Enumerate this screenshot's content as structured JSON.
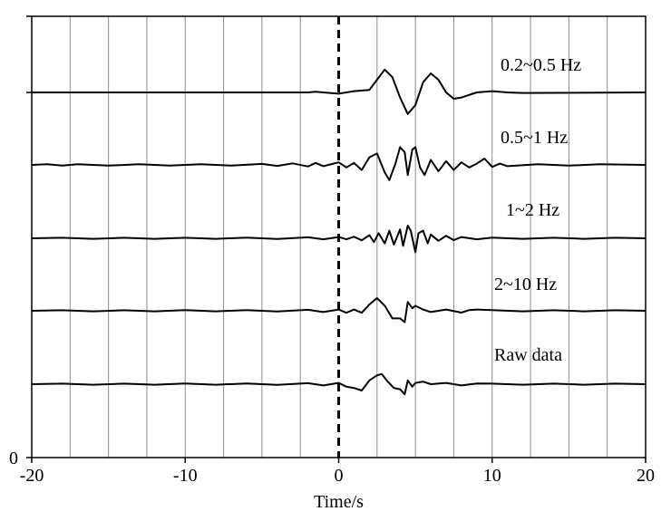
{
  "chart_data": {
    "type": "line",
    "title": "",
    "xlabel": "Time/s",
    "ylabel": "",
    "xlim": [
      -20,
      20
    ],
    "x_ticks": [
      -20,
      -10,
      0,
      10,
      20
    ],
    "x_tick_labels": [
      "-20",
      "-10",
      "0",
      "10",
      "20"
    ],
    "y_tick_labels": [
      "0"
    ],
    "vertical_grid_interval_s": 2.5,
    "grid": "vertical lines only",
    "onset_marker": {
      "x": 0,
      "style": "dashed"
    },
    "series": [
      {
        "name": "0.2~0.5 Hz",
        "offset": 5,
        "color": "#000000",
        "points": [
          [
            -20,
            0
          ],
          [
            -2,
            0
          ],
          [
            -1.5,
            0.03
          ],
          [
            -1,
            0
          ],
          [
            0,
            -0.05
          ],
          [
            1,
            0.05
          ],
          [
            2,
            0.1
          ],
          [
            2.5,
            0.5
          ],
          [
            3,
            0.9
          ],
          [
            3.5,
            0.6
          ],
          [
            4,
            -0.2
          ],
          [
            4.5,
            -0.85
          ],
          [
            5,
            -0.5
          ],
          [
            5.5,
            0.4
          ],
          [
            6,
            0.75
          ],
          [
            6.5,
            0.5
          ],
          [
            7,
            0
          ],
          [
            7.5,
            -0.25
          ],
          [
            8,
            -0.2
          ],
          [
            9,
            0
          ],
          [
            10,
            0.05
          ],
          [
            11,
            0
          ],
          [
            12,
            -0.02
          ],
          [
            20,
            0
          ]
        ]
      },
      {
        "name": "0.5~1 Hz",
        "offset": 4,
        "color": "#000000",
        "points": [
          [
            -20,
            0
          ],
          [
            -19,
            0.03
          ],
          [
            -18,
            -0.03
          ],
          [
            -17,
            0.03
          ],
          [
            -15,
            -0.03
          ],
          [
            -13,
            0.03
          ],
          [
            -11,
            -0.03
          ],
          [
            -9,
            0.03
          ],
          [
            -7,
            -0.03
          ],
          [
            -5,
            0.04
          ],
          [
            -4,
            -0.04
          ],
          [
            -3,
            0.06
          ],
          [
            -2,
            -0.06
          ],
          [
            -1.5,
            0.08
          ],
          [
            -1,
            -0.05
          ],
          [
            0,
            0.1
          ],
          [
            0.5,
            -0.1
          ],
          [
            1,
            0.08
          ],
          [
            1.5,
            -0.2
          ],
          [
            2,
            0.3
          ],
          [
            2.5,
            0.45
          ],
          [
            3,
            -0.3
          ],
          [
            3.3,
            -0.6
          ],
          [
            3.7,
            0.05
          ],
          [
            4,
            0.7
          ],
          [
            4.3,
            0.5
          ],
          [
            4.5,
            -0.4
          ],
          [
            4.8,
            0.6
          ],
          [
            5,
            0.7
          ],
          [
            5.3,
            -0.1
          ],
          [
            5.6,
            -0.4
          ],
          [
            6,
            0.2
          ],
          [
            6.5,
            -0.25
          ],
          [
            7,
            0.15
          ],
          [
            7.5,
            -0.2
          ],
          [
            8,
            0.1
          ],
          [
            8.5,
            -0.1
          ],
          [
            9,
            0.05
          ],
          [
            9.5,
            0.25
          ],
          [
            10,
            -0.08
          ],
          [
            10.5,
            0.05
          ],
          [
            11,
            -0.05
          ],
          [
            13,
            0.03
          ],
          [
            15,
            -0.03
          ],
          [
            17,
            0.03
          ],
          [
            20,
            0
          ]
        ]
      },
      {
        "name": "1~2 Hz",
        "offset": 3,
        "color": "#000000",
        "points": [
          [
            -20,
            0
          ],
          [
            -18,
            0.02
          ],
          [
            -16,
            -0.02
          ],
          [
            -14,
            0.02
          ],
          [
            -12,
            -0.02
          ],
          [
            -10,
            0.02
          ],
          [
            -8,
            -0.02
          ],
          [
            -6,
            0.03
          ],
          [
            -4,
            -0.03
          ],
          [
            -2,
            0.04
          ],
          [
            -1,
            -0.04
          ],
          [
            0,
            0.05
          ],
          [
            0.5,
            -0.04
          ],
          [
            1,
            0.06
          ],
          [
            1.5,
            -0.08
          ],
          [
            2,
            0.12
          ],
          [
            2.3,
            -0.15
          ],
          [
            2.6,
            0.2
          ],
          [
            3,
            -0.2
          ],
          [
            3.3,
            0.3
          ],
          [
            3.6,
            -0.25
          ],
          [
            4,
            0.35
          ],
          [
            4.2,
            -0.3
          ],
          [
            4.5,
            0.5
          ],
          [
            4.7,
            0.3
          ],
          [
            5,
            -0.55
          ],
          [
            5.2,
            0.2
          ],
          [
            5.5,
            0.3
          ],
          [
            5.8,
            -0.2
          ],
          [
            6,
            0.15
          ],
          [
            6.5,
            -0.1
          ],
          [
            7,
            0.1
          ],
          [
            7.5,
            -0.07
          ],
          [
            8,
            0.05
          ],
          [
            9,
            -0.04
          ],
          [
            10,
            0.03
          ],
          [
            12,
            -0.02
          ],
          [
            14,
            0.02
          ],
          [
            16,
            -0.02
          ],
          [
            18,
            0.02
          ],
          [
            20,
            0
          ]
        ]
      },
      {
        "name": "2~10 Hz",
        "offset": 2,
        "color": "#000000",
        "points": [
          [
            -20,
            0
          ],
          [
            -18,
            0.02
          ],
          [
            -16,
            -0.02
          ],
          [
            -14,
            0.02
          ],
          [
            -12,
            -0.02
          ],
          [
            -10,
            0.03
          ],
          [
            -8,
            -0.02
          ],
          [
            -6,
            0.03
          ],
          [
            -4,
            -0.03
          ],
          [
            -2,
            0.04
          ],
          [
            -1,
            -0.05
          ],
          [
            0,
            0.05
          ],
          [
            0.5,
            -0.08
          ],
          [
            1,
            0.05
          ],
          [
            1.5,
            -0.08
          ],
          [
            2,
            0.25
          ],
          [
            2.5,
            0.5
          ],
          [
            3,
            0.2
          ],
          [
            3.5,
            -0.3
          ],
          [
            4,
            -0.3
          ],
          [
            4.3,
            -0.45
          ],
          [
            4.5,
            0.35
          ],
          [
            4.8,
            0.1
          ],
          [
            5,
            0.2
          ],
          [
            5.5,
            0.05
          ],
          [
            6,
            -0.05
          ],
          [
            7,
            0.05
          ],
          [
            8,
            -0.07
          ],
          [
            8.5,
            0.03
          ],
          [
            9,
            0.05
          ],
          [
            10,
            0.03
          ],
          [
            12,
            -0.02
          ],
          [
            14,
            0.02
          ],
          [
            16,
            -0.02
          ],
          [
            18,
            0.02
          ],
          [
            20,
            0
          ]
        ]
      },
      {
        "name": "Raw data",
        "offset": 1,
        "color": "#000000",
        "points": [
          [
            -20,
            0
          ],
          [
            -18,
            0.02
          ],
          [
            -16,
            -0.02
          ],
          [
            -14,
            0.02
          ],
          [
            -12,
            -0.02
          ],
          [
            -10,
            0.03
          ],
          [
            -8,
            -0.02
          ],
          [
            -6,
            0.03
          ],
          [
            -4,
            -0.03
          ],
          [
            -2,
            0.04
          ],
          [
            -1,
            -0.05
          ],
          [
            0,
            0.05
          ],
          [
            0.5,
            -0.1
          ],
          [
            1,
            -0.15
          ],
          [
            1.5,
            -0.25
          ],
          [
            2,
            0.15
          ],
          [
            2.5,
            0.35
          ],
          [
            2.8,
            0.4
          ],
          [
            3.2,
            0.1
          ],
          [
            3.6,
            -0.15
          ],
          [
            4,
            -0.2
          ],
          [
            4.3,
            -0.4
          ],
          [
            4.5,
            0.15
          ],
          [
            4.8,
            -0.1
          ],
          [
            5,
            0.05
          ],
          [
            5.5,
            0.1
          ],
          [
            6,
            0.0
          ],
          [
            7,
            0.05
          ],
          [
            8,
            -0.05
          ],
          [
            9,
            0.03
          ],
          [
            10,
            0.02
          ],
          [
            12,
            -0.02
          ],
          [
            14,
            0.02
          ],
          [
            16,
            -0.02
          ],
          [
            18,
            0.02
          ],
          [
            20,
            0
          ]
        ]
      }
    ]
  }
}
